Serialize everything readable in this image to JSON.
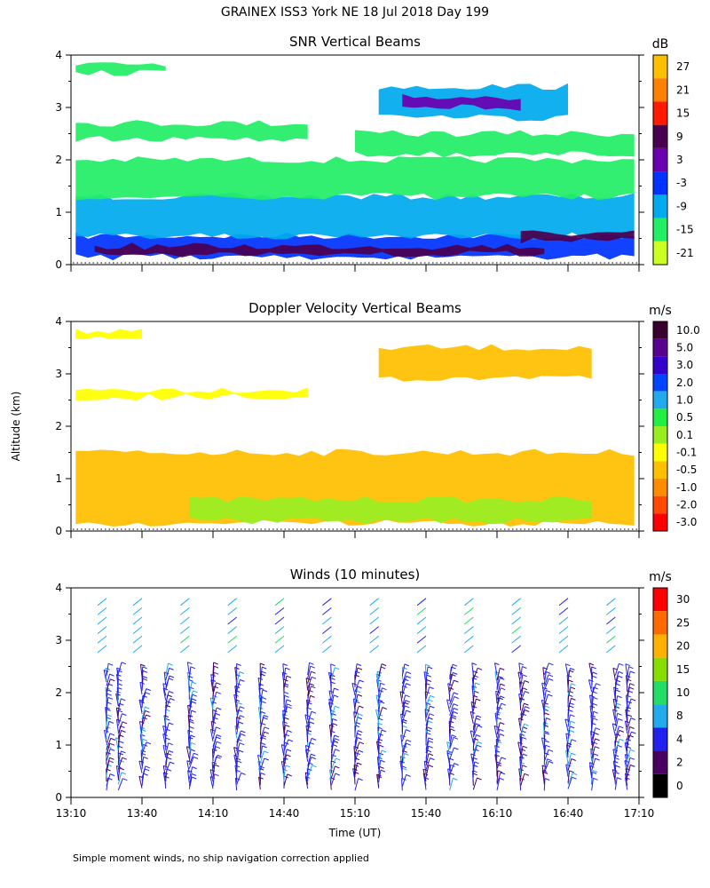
{
  "title": "GRAINEX ISS3 York NE  18 Jul 2018 Day 199",
  "footnote": "Simple moment winds, no ship navigation correction applied",
  "y_axis_label": "Altitude (km)",
  "x_axis_label": "Time (UT)",
  "x_tick_labels": [
    "13:10",
    "13:40",
    "14:10",
    "14:40",
    "15:10",
    "15:40",
    "16:10",
    "16:40",
    "17:10"
  ],
  "chart_data": [
    {
      "type": "heatmap",
      "title": "SNR Vertical Beams",
      "ylabel": "Altitude (km)",
      "ylim": [
        0,
        4
      ],
      "y_ticks": [
        "0",
        "1",
        "2",
        "3",
        "4"
      ],
      "colorbar": {
        "unit": "dB",
        "labels": [
          "27",
          "21",
          "15",
          "9",
          "3",
          "-3",
          "-9",
          "-15",
          "-21"
        ],
        "colors": [
          "#ffc000",
          "#ff8000",
          "#ff1a00",
          "#4a0050",
          "#6a00b0",
          "#0033ff",
          "#00aaee",
          "#22ee66",
          "#ccff22"
        ]
      },
      "layers": [
        {
          "t0": "13:12",
          "t1": "17:08",
          "alt0": 0.15,
          "alt1": 0.55,
          "value": -3
        },
        {
          "t0": "13:12",
          "t1": "17:08",
          "alt0": 0.55,
          "alt1": 1.3,
          "value": -9
        },
        {
          "t0": "13:12",
          "t1": "17:08",
          "alt0": 1.3,
          "alt1": 2.0,
          "value": -15
        },
        {
          "t0": "13:12",
          "t1": "14:50",
          "alt0": 2.4,
          "alt1": 2.7,
          "value": -15
        },
        {
          "t0": "15:10",
          "t1": "17:08",
          "alt0": 2.1,
          "alt1": 2.5,
          "value": -15
        },
        {
          "t0": "15:20",
          "t1": "16:40",
          "alt0": 2.8,
          "alt1": 3.4,
          "value": -9
        },
        {
          "t0": "15:30",
          "t1": "16:20",
          "alt0": 3.0,
          "alt1": 3.2,
          "value": 3
        },
        {
          "t0": "13:12",
          "t1": "13:50",
          "alt0": 3.65,
          "alt1": 3.8,
          "value": -15
        },
        {
          "t0": "13:20",
          "t1": "16:30",
          "alt0": 0.2,
          "alt1": 0.35,
          "value": 9
        },
        {
          "t0": "16:20",
          "t1": "17:08",
          "alt0": 0.45,
          "alt1": 0.6,
          "value": 9
        }
      ]
    },
    {
      "type": "heatmap",
      "title": "Doppler Velocity Vertical Beams",
      "ylabel": "Altitude (km)",
      "ylim": [
        0,
        4
      ],
      "y_ticks": [
        "0",
        "1",
        "2",
        "3",
        "4"
      ],
      "colorbar": {
        "unit": "m/s",
        "labels": [
          "10.0",
          "5.0",
          "3.0",
          "2.0",
          "1.0",
          "0.5",
          "0.1",
          "-0.1",
          "-0.5",
          "-1.0",
          "-2.0",
          "-3.0"
        ],
        "colors": [
          "#3a0030",
          "#5a0090",
          "#3300cc",
          "#0044ff",
          "#22aaee",
          "#22ee44",
          "#99ee22",
          "#ffff00",
          "#ffc000",
          "#ff8c00",
          "#ff4a00",
          "#ff0000"
        ]
      },
      "layers": [
        {
          "t0": "13:12",
          "t1": "17:08",
          "alt0": 0.15,
          "alt1": 1.5,
          "value": -0.5
        },
        {
          "t0": "14:00",
          "t1": "16:50",
          "alt0": 0.2,
          "alt1": 0.6,
          "value": 0.1
        },
        {
          "t0": "15:20",
          "t1": "16:50",
          "alt0": 2.9,
          "alt1": 3.5,
          "value": -0.5
        },
        {
          "t0": "13:12",
          "t1": "14:50",
          "alt0": 2.55,
          "alt1": 2.7,
          "value": -0.1
        },
        {
          "t0": "13:12",
          "t1": "13:40",
          "alt0": 3.65,
          "alt1": 3.8,
          "value": -0.1
        }
      ]
    },
    {
      "type": "scatter",
      "subtype": "wind-barbs",
      "title": "Winds (10 minutes)",
      "ylabel": "Altitude (km)",
      "xlabel": "Time (UT)",
      "ylim": [
        0,
        4
      ],
      "y_ticks": [
        "0",
        "1",
        "2",
        "3",
        "4"
      ],
      "colorbar": {
        "unit": "m/s",
        "labels": [
          "30",
          "25",
          "20",
          "15",
          "10",
          "8",
          "4",
          "2",
          "0"
        ],
        "colors": [
          "#ff0000",
          "#ff6a00",
          "#ffb000",
          "#88dd00",
          "#22dd66",
          "#22aaee",
          "#2222ee",
          "#4a0060",
          "#000000"
        ]
      },
      "profile_times": [
        "13:25",
        "13:30",
        "13:40",
        "13:50",
        "14:00",
        "14:10",
        "14:20",
        "14:30",
        "14:40",
        "14:50",
        "15:00",
        "15:10",
        "15:20",
        "15:30",
        "15:40",
        "15:50",
        "16:00",
        "16:10",
        "16:20",
        "16:30",
        "16:40",
        "16:50",
        "17:00",
        "17:05"
      ]
    }
  ]
}
